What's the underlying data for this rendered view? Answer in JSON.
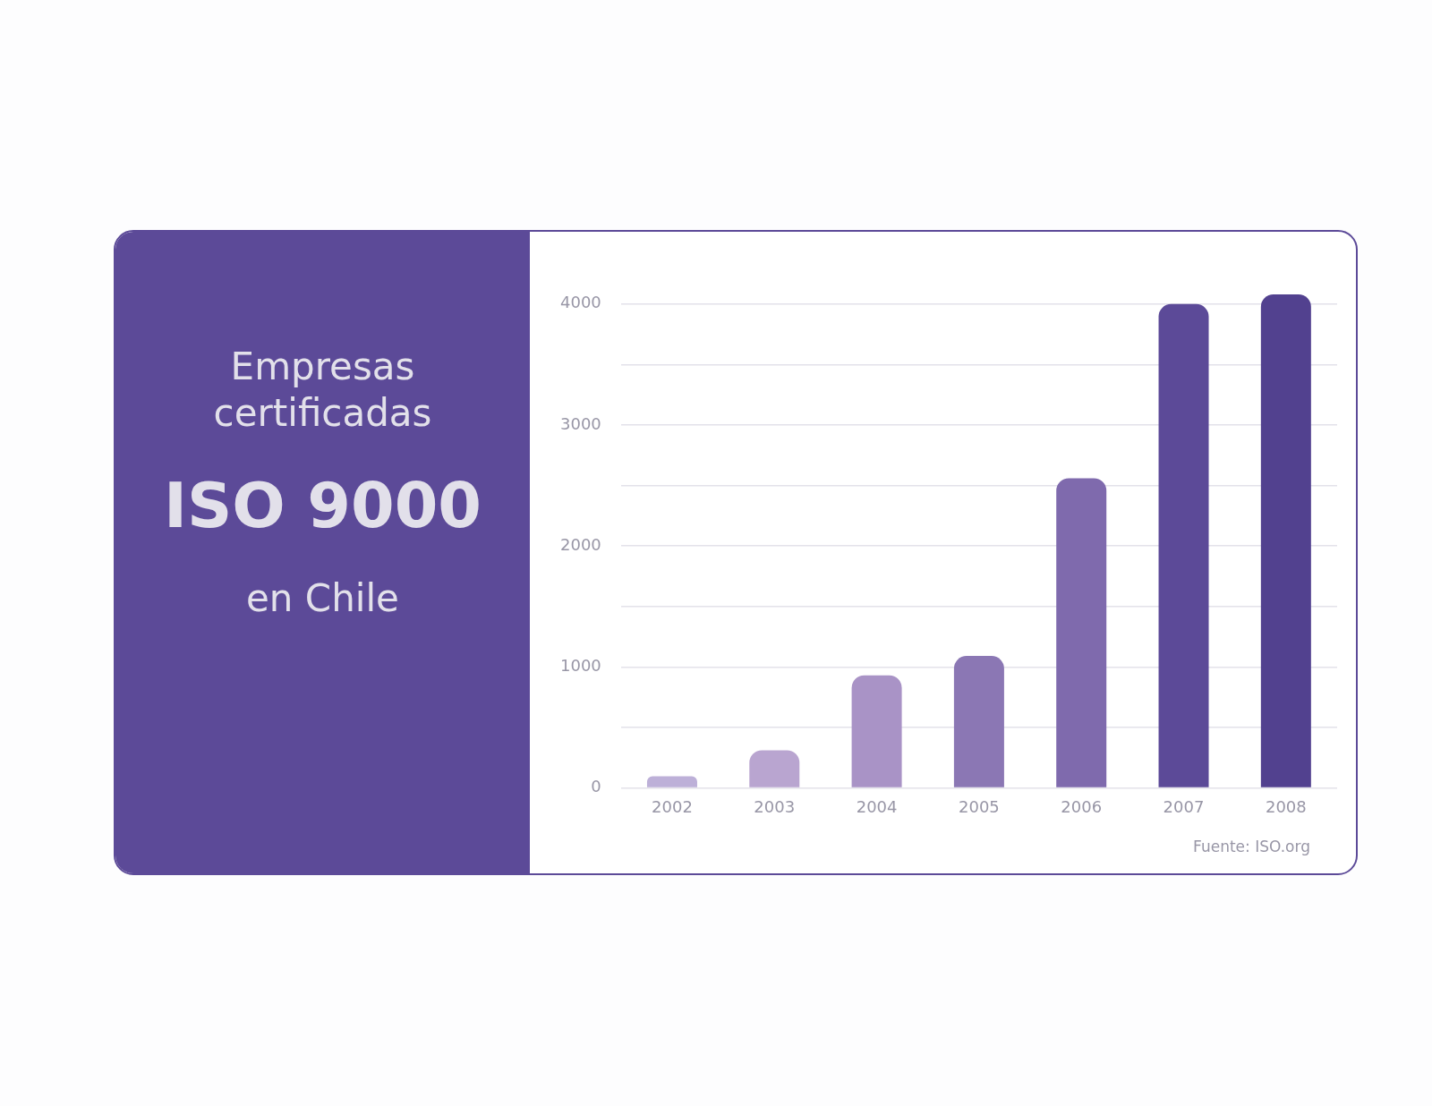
{
  "chart_data": {
    "type": "bar",
    "title": "Empresas certificadas",
    "subtitle": "ISO 9000",
    "annotations": [
      "en Chile",
      "Fuente: ISO.org"
    ],
    "categories": [
      "2002",
      "2003",
      "2004",
      "2005",
      "2006",
      "2007",
      "2008"
    ],
    "values": [
      95,
      310,
      930,
      1090,
      2560,
      4000,
      4080
    ],
    "colors": [
      "#bdb0d8",
      "#b9a5d0",
      "#a993c6",
      "#8b77b4",
      "#7f6aad",
      "#5c4a98",
      "#52418f"
    ],
    "ylim": [
      0,
      4080
    ],
    "yticks": [
      0,
      {
        "value": 500,
        "label": null
      },
      1000,
      {
        "value": 1500,
        "label": null
      },
      2000,
      {
        "value": 2500,
        "label": null
      },
      3000,
      {
        "value": 3500,
        "label": null
      },
      4000
    ],
    "grid": "y"
  }
}
